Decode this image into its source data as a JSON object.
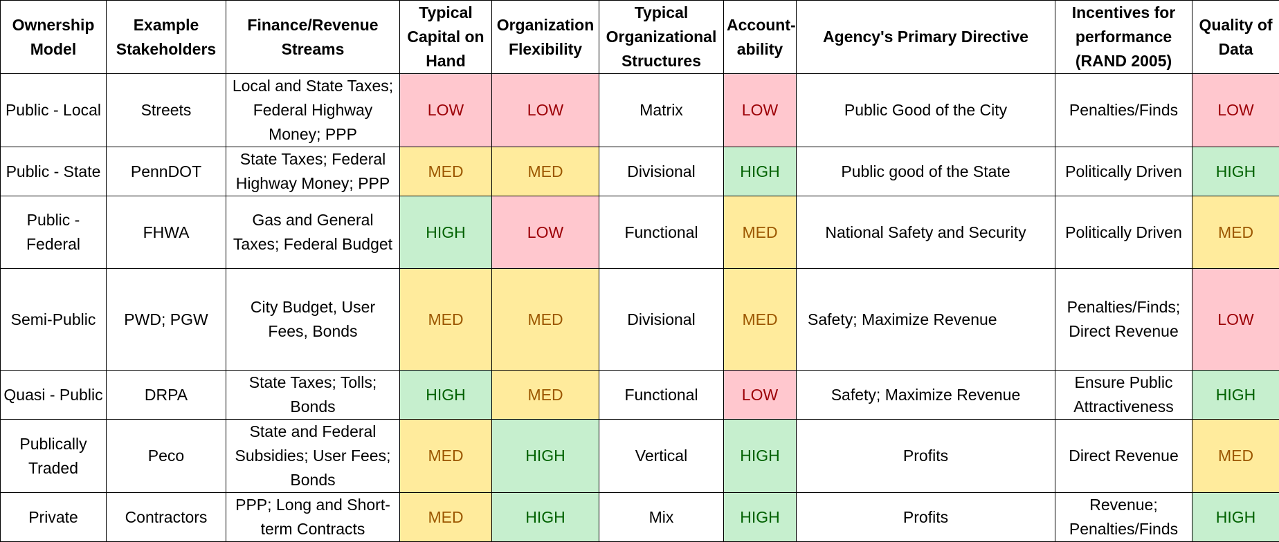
{
  "headers": [
    "Ownership Model",
    "Example Stakeholders",
    "Finance/Revenue Streams",
    "Typical Capital on Hand",
    "Organization Flexibility",
    "Typical Organizational Structures",
    "Account-ability",
    "Agency's Primary Directive",
    "Incentives for performance (RAND 2005)",
    "Quality of Data"
  ],
  "rating_colors": {
    "LOW": {
      "fill": "#ffc7ce",
      "text": "#9c0006"
    },
    "MED": {
      "fill": "#ffeb9c",
      "text": "#9c5700"
    },
    "HIGH": {
      "fill": "#c6efce",
      "text": "#006100"
    }
  },
  "rows": [
    {
      "model": "Public - Local",
      "stakeholders": "Streets",
      "finance": "Local and State Taxes; Federal Highway Money; PPP",
      "capital": "LOW",
      "flexibility": "LOW",
      "structure": "Matrix",
      "accountability": "LOW",
      "directive": "Public Good of the City",
      "incentives": "Penalties/Finds",
      "data_quality": "LOW"
    },
    {
      "model": "Public - State",
      "stakeholders": "PennDOT",
      "finance": "State Taxes; Federal Highway Money; PPP",
      "capital": "MED",
      "flexibility": "MED",
      "structure": "Divisional",
      "accountability": "HIGH",
      "directive": "Public good of the State",
      "incentives": "Politically Driven",
      "data_quality": "HIGH"
    },
    {
      "model": "Public - Federal",
      "stakeholders": "FHWA",
      "finance": "Gas and General Taxes; Federal Budget",
      "capital": "HIGH",
      "flexibility": "LOW",
      "structure": "Functional",
      "accountability": "MED",
      "directive": "National Safety and Security",
      "incentives": "Politically Driven",
      "data_quality": "MED"
    },
    {
      "model": "Semi-Public",
      "stakeholders": "PWD; PGW",
      "finance": "City Budget, User Fees, Bonds",
      "capital": "MED",
      "flexibility": "MED",
      "structure": "Divisional",
      "accountability": "MED",
      "directive": "Safety; Maximize Revenue",
      "incentives": "Penalties/Finds; Direct Revenue",
      "data_quality": "LOW"
    },
    {
      "model": "Quasi - Public",
      "stakeholders": "DRPA",
      "finance": "State Taxes; Tolls; Bonds",
      "capital": "HIGH",
      "flexibility": "MED",
      "structure": "Functional",
      "accountability": "LOW",
      "directive": "Safety; Maximize Revenue",
      "incentives": "Ensure Public Attractiveness",
      "data_quality": "HIGH"
    },
    {
      "model": "Publically Traded",
      "stakeholders": "Peco",
      "finance": "State and Federal Subsidies; User Fees; Bonds",
      "capital": "MED",
      "flexibility": "HIGH",
      "structure": "Vertical",
      "accountability": "HIGH",
      "directive": "Profits",
      "incentives": "Direct Revenue",
      "data_quality": "MED"
    },
    {
      "model": "Private",
      "stakeholders": "Contractors",
      "finance": "PPP; Long and Short-term Contracts",
      "capital": "MED",
      "flexibility": "HIGH",
      "structure": "Mix",
      "accountability": "HIGH",
      "directive": "Profits",
      "incentives": "Revenue; Penalties/Finds",
      "data_quality": "HIGH"
    }
  ]
}
